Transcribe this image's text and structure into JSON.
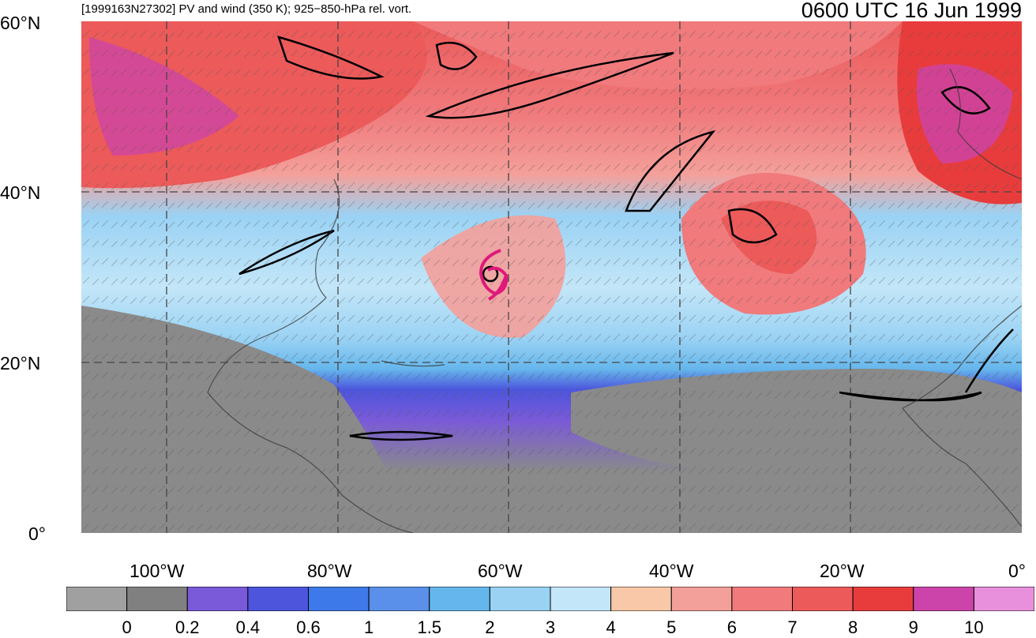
{
  "header": {
    "left_title": "[1999163N27302] PV and wind (350 K); 925−850-hPa rel. vort.",
    "right_title": "0600 UTC 16 Jun 1999"
  },
  "axes": {
    "lat_ticks": [
      {
        "value": 60,
        "label": "60°N"
      },
      {
        "value": 40,
        "label": "40°N"
      },
      {
        "value": 20,
        "label": "20°N"
      },
      {
        "value": 0,
        "label": "0°"
      }
    ],
    "lon_ticks": [
      {
        "value": -100,
        "label": "100°W"
      },
      {
        "value": -80,
        "label": "80°W"
      },
      {
        "value": -60,
        "label": "60°W"
      },
      {
        "value": -40,
        "label": "40°W"
      },
      {
        "value": -20,
        "label": "20°W"
      },
      {
        "value": 0,
        "label": "0°"
      }
    ],
    "lon_range": [
      -110,
      0
    ],
    "lat_range": [
      0,
      60
    ],
    "grid": true,
    "grid_style": "dashed"
  },
  "colorbar": {
    "labels": [
      "0",
      "0.2",
      "0.4",
      "0.6",
      "1",
      "1.5",
      "2",
      "3",
      "4",
      "5",
      "6",
      "7",
      "8",
      "9",
      "10"
    ],
    "colors": [
      "#a0a0a0",
      "#808080",
      "#7a5ad8",
      "#4c55dc",
      "#3d79e8",
      "#5b90ea",
      "#65b6ec",
      "#9ad2f4",
      "#c3e6f8",
      "#f9c8a8",
      "#f4a09a",
      "#f07a7c",
      "#ec5a5a",
      "#e83c3c",
      "#cc44aa",
      "#e890dc"
    ]
  },
  "map": {
    "storm_marker": {
      "lon": -62,
      "lat": 30.5,
      "color": "#e0187a"
    },
    "colors": {
      "tropics_low": "#8a8a8a",
      "tropics_mid": "#7a5ad8",
      "subtropics": "#9ad2f4",
      "midlat_high": "#ec5a5a",
      "high_pv": "#cc44aa"
    }
  }
}
